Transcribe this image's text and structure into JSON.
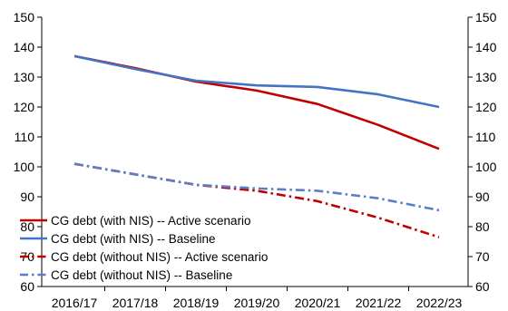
{
  "chart_data": {
    "type": "line",
    "categories": [
      "2016/17",
      "2017/18",
      "2018/19",
      "2019/20",
      "2020/21",
      "2021/22",
      "2022/23"
    ],
    "ylim": [
      60,
      150
    ],
    "yticks": [
      60,
      70,
      80,
      90,
      100,
      110,
      120,
      130,
      140,
      150
    ],
    "grid": false,
    "legend_position": "bottom-left",
    "series": [
      {
        "name": "CG debt (with NIS) -- Active scenario",
        "color": "#c00000",
        "style": "solid",
        "values": [
          137,
          133,
          128.5,
          125.5,
          121,
          114,
          106
        ]
      },
      {
        "name": "CG debt (with NIS) -- Baseline",
        "color": "#4472c4",
        "style": "solid",
        "values": [
          137,
          132.7,
          128.8,
          127.2,
          126.7,
          124.2,
          120
        ]
      },
      {
        "name": "CG debt (without NIS) -- Active scenario",
        "color": "#c00000",
        "style": "dashdot",
        "values": [
          101,
          97.5,
          94,
          92,
          88.5,
          83,
          76.5
        ]
      },
      {
        "name": "CG debt (without NIS) -- Baseline",
        "color": "#5b7fc4",
        "style": "dashdot",
        "values": [
          101,
          97.5,
          94,
          92.8,
          92,
          89.5,
          85.5
        ]
      }
    ]
  }
}
